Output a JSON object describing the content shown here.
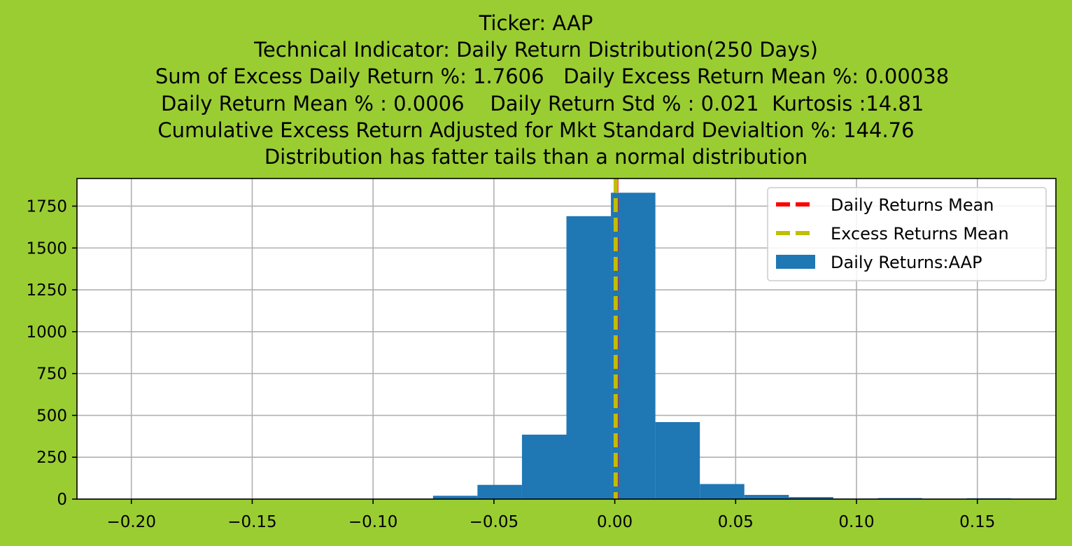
{
  "title_lines": [
    "Ticker: AAP",
    "Technical Indicator: Daily Return Distribution(250 Days)",
    "     Sum of Excess Daily Return %: 1.7606   Daily Excess Return Mean %: 0.00038",
    "  Daily Return Mean % : 0.0006    Daily Return Std % : 0.021  Kurtosis :14.81",
    "Cumulative Excess Return Adjusted for Mkt Standard Devialtion %: 144.76",
    "Distribution has fatter tails than a normal distribution"
  ],
  "colors": {
    "background": "#9acd32",
    "bars": "#1f77b4",
    "daily_mean_line": "#ff0000",
    "excess_mean_line": "#bfbf00",
    "grid": "#b0b0b0"
  },
  "chart_data": {
    "type": "bar",
    "subtype": "histogram",
    "xlim": [
      -0.2225,
      0.1825
    ],
    "ylim": [
      0,
      1915
    ],
    "xticks": [
      -0.2,
      -0.15,
      -0.1,
      -0.05,
      0.0,
      0.05,
      0.1,
      0.15
    ],
    "xtick_labels": [
      "−0.20",
      "−0.15",
      "−0.10",
      "−0.05",
      "0.00",
      "0.05",
      "0.10",
      "0.15"
    ],
    "yticks": [
      0,
      250,
      500,
      750,
      1000,
      1250,
      1500,
      1750
    ],
    "ytick_labels": [
      "0",
      "250",
      "500",
      "750",
      "1000",
      "1250",
      "1500",
      "1750"
    ],
    "grid": true,
    "legend_position": "upper right",
    "series": [
      {
        "name": "Daily Returns:AAP",
        "kind": "histogram",
        "bins": [
          {
            "x0": -0.204,
            "x1": -0.1856,
            "count": 1
          },
          {
            "x0": -0.1856,
            "x1": -0.1672,
            "count": 0
          },
          {
            "x0": -0.1672,
            "x1": -0.1488,
            "count": 0
          },
          {
            "x0": -0.1488,
            "x1": -0.1304,
            "count": 0
          },
          {
            "x0": -0.1304,
            "x1": -0.112,
            "count": 0
          },
          {
            "x0": -0.112,
            "x1": -0.0936,
            "count": 0
          },
          {
            "x0": -0.0936,
            "x1": -0.0752,
            "count": 1
          },
          {
            "x0": -0.0752,
            "x1": -0.0568,
            "count": 20
          },
          {
            "x0": -0.0568,
            "x1": -0.0384,
            "count": 85
          },
          {
            "x0": -0.0384,
            "x1": -0.02,
            "count": 385
          },
          {
            "x0": -0.02,
            "x1": -0.0016,
            "count": 1690
          },
          {
            "x0": -0.0016,
            "x1": 0.0168,
            "count": 1830
          },
          {
            "x0": 0.0168,
            "x1": 0.0352,
            "count": 460
          },
          {
            "x0": 0.0352,
            "x1": 0.0536,
            "count": 90
          },
          {
            "x0": 0.0536,
            "x1": 0.072,
            "count": 25
          },
          {
            "x0": 0.072,
            "x1": 0.0904,
            "count": 12
          },
          {
            "x0": 0.0904,
            "x1": 0.1088,
            "count": 3
          },
          {
            "x0": 0.1088,
            "x1": 0.1272,
            "count": 6
          },
          {
            "x0": 0.1272,
            "x1": 0.1456,
            "count": 2
          },
          {
            "x0": 0.1456,
            "x1": 0.164,
            "count": 5
          }
        ]
      },
      {
        "name": "Daily Returns Mean",
        "kind": "vline",
        "x": 0.0006
      },
      {
        "name": "Excess Returns Mean",
        "kind": "vline",
        "x": 0.00038
      }
    ]
  }
}
